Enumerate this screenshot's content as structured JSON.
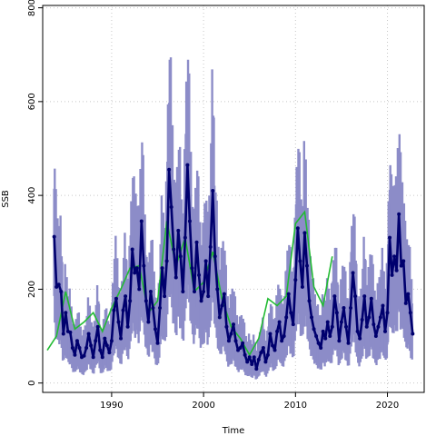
{
  "chart_data": {
    "type": "line",
    "title": "",
    "xlabel": "Time",
    "ylabel": "SSB",
    "xlim": [
      1982.5,
      2024.0
    ],
    "ylim": [
      -20,
      805
    ],
    "grid": true,
    "x_ticks": [
      1990,
      2000,
      2010,
      2020
    ],
    "y_ticks": [
      0,
      200,
      400,
      600,
      800
    ],
    "colors": {
      "band": "#8c8cc8",
      "estimate": "#00006e",
      "observed": "#22bb33",
      "grid": "#c8c8c8"
    },
    "series": [
      {
        "role": "estimate",
        "style": "line-with-points",
        "points": [
          [
            1983.75,
            312
          ],
          [
            1984.0,
            205
          ],
          [
            1984.25,
            210
          ],
          [
            1984.5,
            195
          ],
          [
            1984.75,
            105
          ],
          [
            1985.0,
            150
          ],
          [
            1985.25,
            110
          ],
          [
            1985.5,
            108
          ],
          [
            1985.75,
            75
          ],
          [
            1986.0,
            60
          ],
          [
            1986.25,
            90
          ],
          [
            1986.5,
            75
          ],
          [
            1986.75,
            55
          ],
          [
            1987.0,
            58
          ],
          [
            1987.25,
            75
          ],
          [
            1987.5,
            105
          ],
          [
            1987.75,
            80
          ],
          [
            1988.0,
            55
          ],
          [
            1988.25,
            90
          ],
          [
            1988.5,
            120
          ],
          [
            1988.75,
            70
          ],
          [
            1989.0,
            55
          ],
          [
            1989.25,
            95
          ],
          [
            1989.5,
            80
          ],
          [
            1989.75,
            65
          ],
          [
            1990.0,
            90
          ],
          [
            1990.25,
            155
          ],
          [
            1990.5,
            180
          ],
          [
            1990.75,
            130
          ],
          [
            1991.0,
            95
          ],
          [
            1991.25,
            155
          ],
          [
            1991.5,
            185
          ],
          [
            1991.75,
            120
          ],
          [
            1992.0,
            175
          ],
          [
            1992.25,
            285
          ],
          [
            1992.5,
            235
          ],
          [
            1992.75,
            245
          ],
          [
            1993.0,
            200
          ],
          [
            1993.25,
            345
          ],
          [
            1993.5,
            250
          ],
          [
            1993.75,
            175
          ],
          [
            1994.0,
            130
          ],
          [
            1994.25,
            195
          ],
          [
            1994.5,
            160
          ],
          [
            1994.75,
            115
          ],
          [
            1995.0,
            85
          ],
          [
            1995.25,
            160
          ],
          [
            1995.5,
            245
          ],
          [
            1995.75,
            185
          ],
          [
            1996.0,
            260
          ],
          [
            1996.25,
            455
          ],
          [
            1996.5,
            375
          ],
          [
            1996.75,
            285
          ],
          [
            1997.0,
            225
          ],
          [
            1997.25,
            325
          ],
          [
            1997.5,
            270
          ],
          [
            1997.75,
            195
          ],
          [
            1998.0,
            310
          ],
          [
            1998.25,
            465
          ],
          [
            1998.5,
            345
          ],
          [
            1998.75,
            245
          ],
          [
            1999.0,
            195
          ],
          [
            1999.25,
            300
          ],
          [
            1999.5,
            230
          ],
          [
            1999.75,
            175
          ],
          [
            2000.0,
            195
          ],
          [
            2000.25,
            260
          ],
          [
            2000.5,
            185
          ],
          [
            2000.75,
            290
          ],
          [
            2001.0,
            410
          ],
          [
            2001.25,
            270
          ],
          [
            2001.5,
            200
          ],
          [
            2001.75,
            140
          ],
          [
            2002.0,
            165
          ],
          [
            2002.25,
            190
          ],
          [
            2002.5,
            120
          ],
          [
            2002.75,
            90
          ],
          [
            2003.0,
            105
          ],
          [
            2003.25,
            125
          ],
          [
            2003.5,
            90
          ],
          [
            2003.75,
            70
          ],
          [
            2004.0,
            75
          ],
          [
            2004.25,
            85
          ],
          [
            2004.5,
            60
          ],
          [
            2004.75,
            45
          ],
          [
            2005.0,
            55
          ],
          [
            2005.25,
            40
          ],
          [
            2005.5,
            55
          ],
          [
            2005.75,
            30
          ],
          [
            2006.0,
            50
          ],
          [
            2006.25,
            65
          ],
          [
            2006.5,
            75
          ],
          [
            2006.75,
            45
          ],
          [
            2007.0,
            60
          ],
          [
            2007.25,
            105
          ],
          [
            2007.5,
            80
          ],
          [
            2007.75,
            70
          ],
          [
            2008.0,
            110
          ],
          [
            2008.25,
            130
          ],
          [
            2008.5,
            90
          ],
          [
            2008.75,
            100
          ],
          [
            2009.0,
            140
          ],
          [
            2009.25,
            190
          ],
          [
            2009.5,
            150
          ],
          [
            2009.75,
            125
          ],
          [
            2010.0,
            220
          ],
          [
            2010.25,
            330
          ],
          [
            2010.5,
            260
          ],
          [
            2010.75,
            205
          ],
          [
            2011.0,
            320
          ],
          [
            2011.25,
            250
          ],
          [
            2011.5,
            175
          ],
          [
            2011.75,
            140
          ],
          [
            2012.0,
            115
          ],
          [
            2012.25,
            100
          ],
          [
            2012.5,
            85
          ],
          [
            2012.75,
            75
          ],
          [
            2013.0,
            110
          ],
          [
            2013.25,
            95
          ],
          [
            2013.5,
            130
          ],
          [
            2013.75,
            100
          ],
          [
            2014.0,
            120
          ],
          [
            2014.25,
            185
          ],
          [
            2014.5,
            150
          ],
          [
            2014.75,
            90
          ],
          [
            2015.0,
            130
          ],
          [
            2015.25,
            160
          ],
          [
            2015.5,
            120
          ],
          [
            2015.75,
            85
          ],
          [
            2016.0,
            160
          ],
          [
            2016.25,
            235
          ],
          [
            2016.5,
            185
          ],
          [
            2016.75,
            110
          ],
          [
            2017.0,
            95
          ],
          [
            2017.25,
            135
          ],
          [
            2017.5,
            185
          ],
          [
            2017.75,
            120
          ],
          [
            2018.0,
            140
          ],
          [
            2018.25,
            180
          ],
          [
            2018.5,
            125
          ],
          [
            2018.75,
            100
          ],
          [
            2019.0,
            120
          ],
          [
            2019.25,
            140
          ],
          [
            2019.5,
            165
          ],
          [
            2019.75,
            110
          ],
          [
            2020.0,
            150
          ],
          [
            2020.25,
            310
          ],
          [
            2020.5,
            230
          ],
          [
            2020.75,
            270
          ],
          [
            2021.0,
            240
          ],
          [
            2021.25,
            360
          ],
          [
            2021.5,
            250
          ],
          [
            2021.75,
            260
          ],
          [
            2022.0,
            170
          ],
          [
            2022.25,
            190
          ],
          [
            2022.5,
            150
          ],
          [
            2022.75,
            105
          ]
        ]
      },
      {
        "role": "observed",
        "style": "line",
        "points": [
          [
            1983.0,
            70
          ],
          [
            1984.0,
            100
          ],
          [
            1985.0,
            195
          ],
          [
            1986.0,
            115
          ],
          [
            1987.0,
            130
          ],
          [
            1988.0,
            150
          ],
          [
            1989.0,
            110
          ],
          [
            1990.0,
            160
          ],
          [
            1991.0,
            200
          ],
          [
            1992.0,
            245
          ],
          [
            1993.0,
            250
          ],
          [
            1994.0,
            150
          ],
          [
            1995.0,
            175
          ],
          [
            1996.0,
            345
          ],
          [
            1997.0,
            250
          ],
          [
            1998.0,
            310
          ],
          [
            1999.0,
            195
          ],
          [
            2000.0,
            215
          ],
          [
            2001.0,
            280
          ],
          [
            2002.0,
            180
          ],
          [
            2003.0,
            120
          ],
          [
            2004.0,
            95
          ],
          [
            2005.0,
            60
          ],
          [
            2006.0,
            95
          ],
          [
            2007.0,
            180
          ],
          [
            2008.0,
            165
          ],
          [
            2009.0,
            185
          ],
          [
            2010.0,
            340
          ],
          [
            2011.0,
            365
          ],
          [
            2012.0,
            205
          ],
          [
            2013.0,
            165
          ],
          [
            2014.0,
            270
          ]
        ]
      }
    ]
  }
}
